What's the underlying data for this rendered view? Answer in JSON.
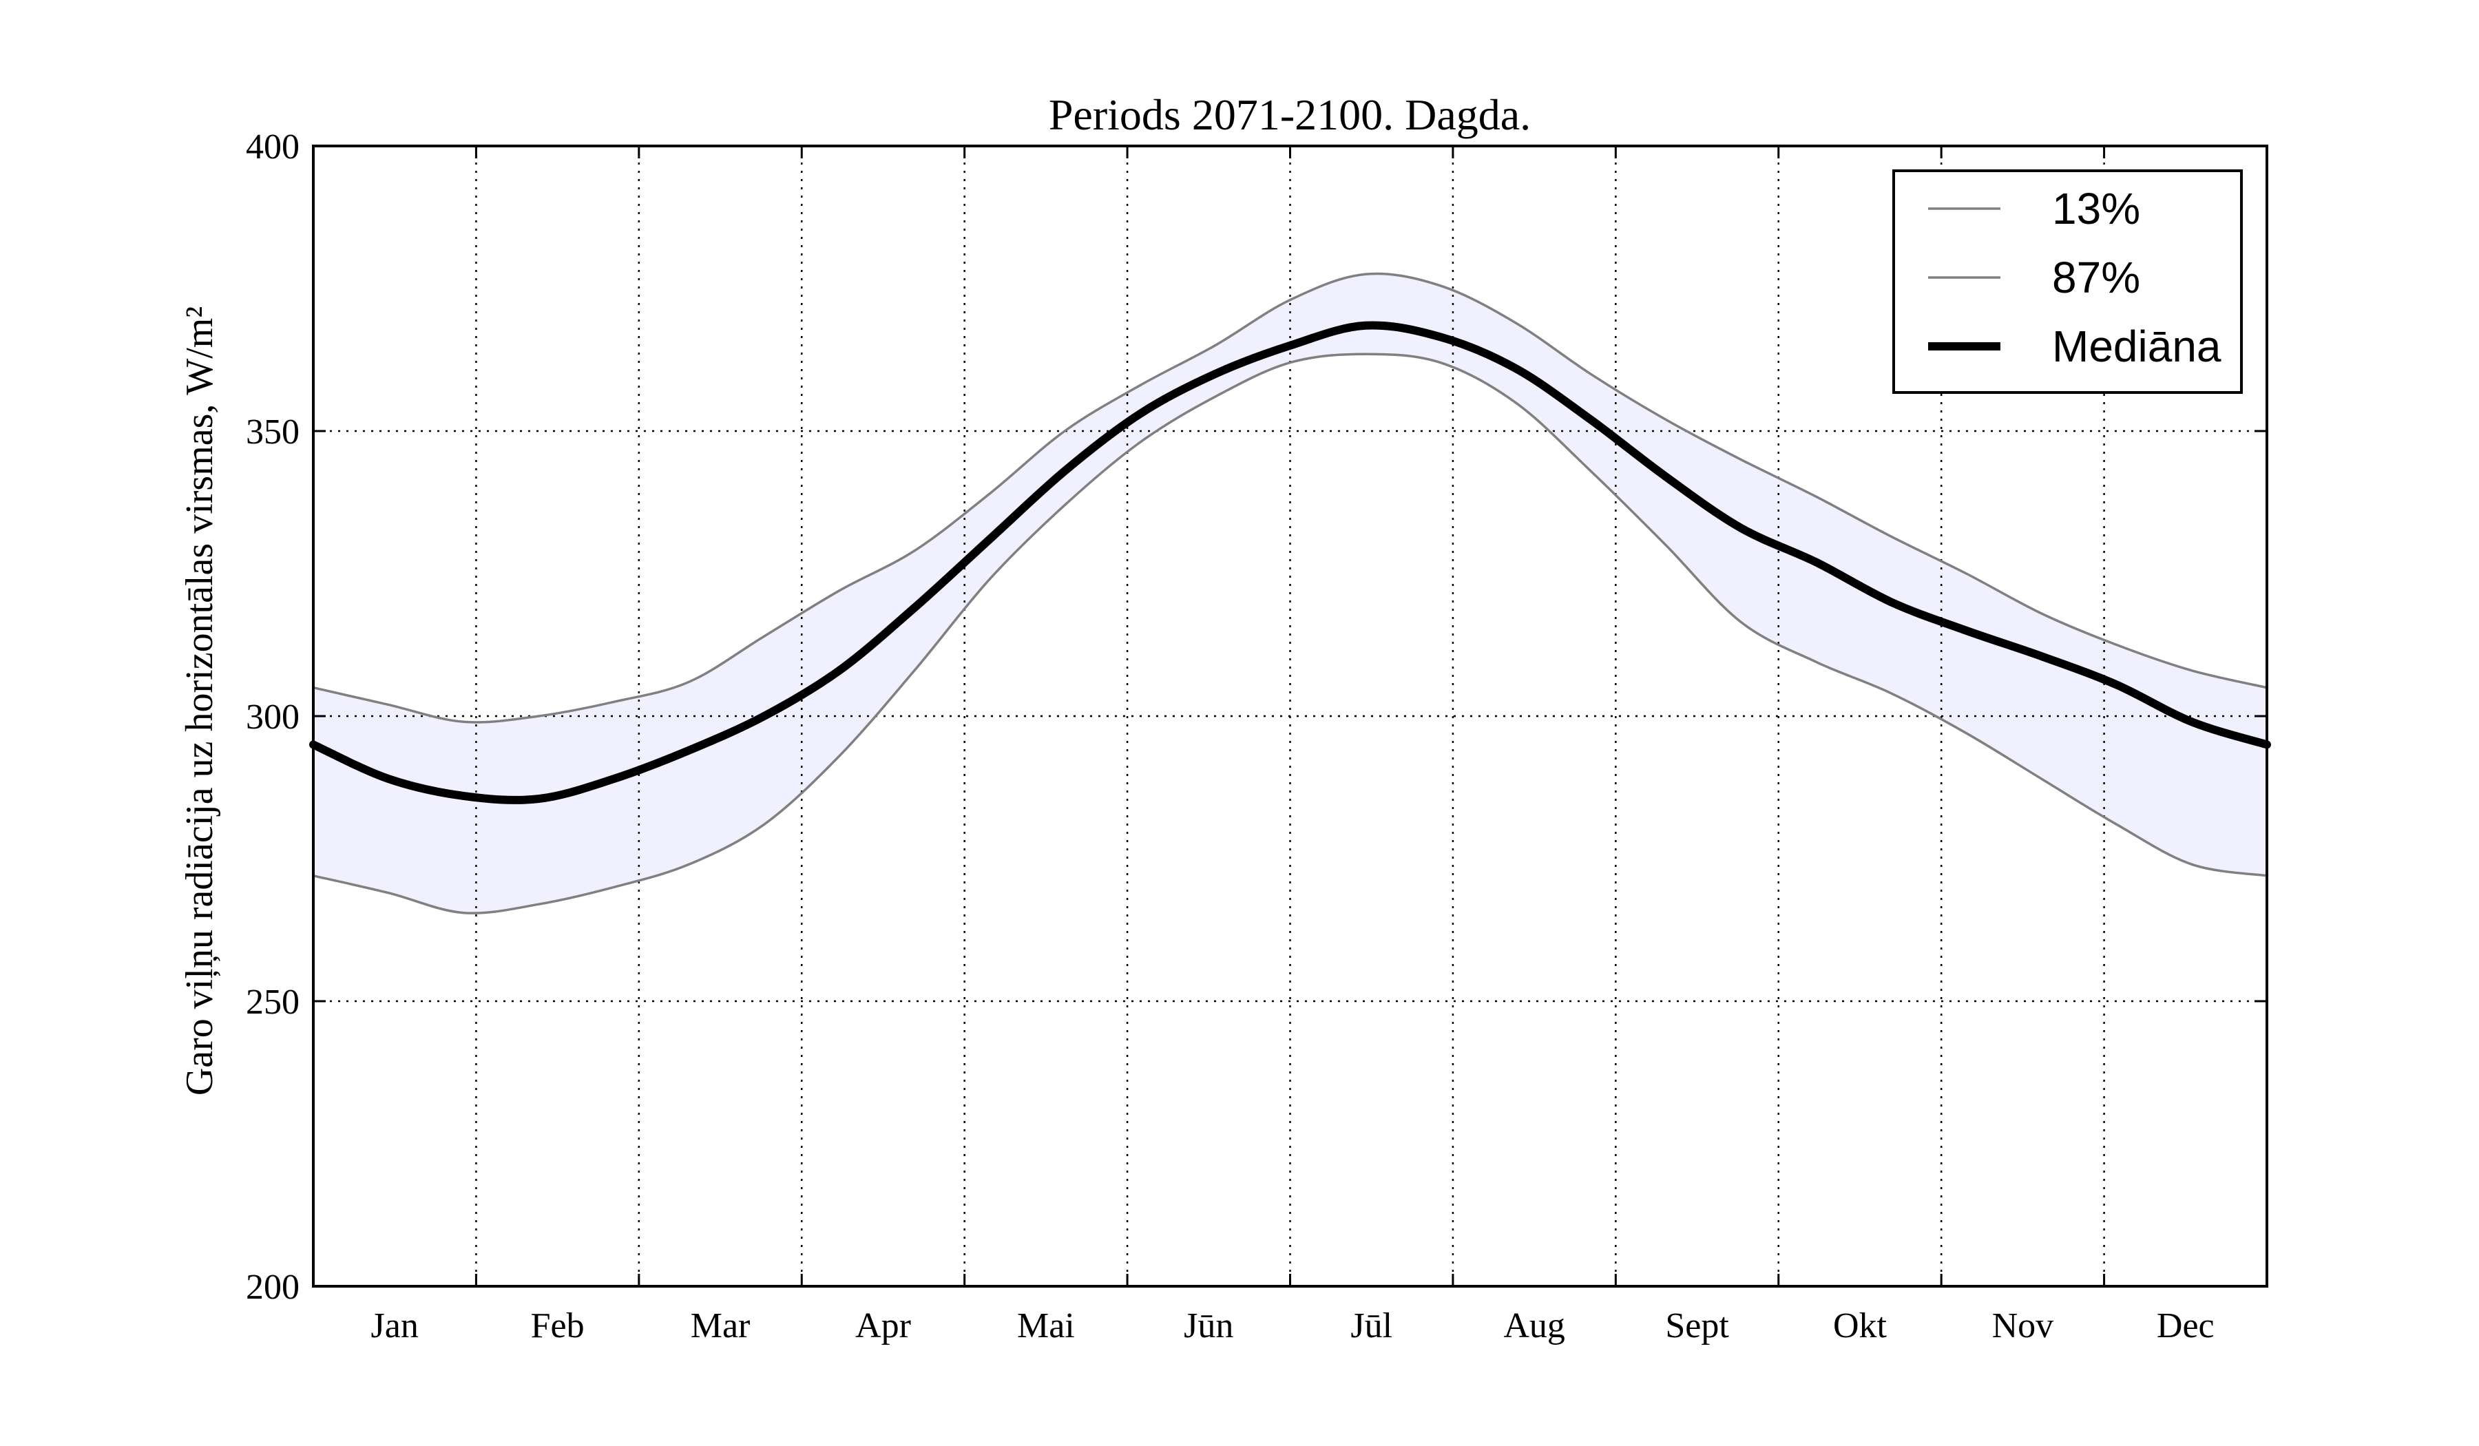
{
  "chart_data": {
    "type": "line",
    "title": "Periods 2071-2100. Dagda.",
    "ylabel": "Garo viļņu radiācija uz horizontālas virsmas, W/m²",
    "xlabel": "",
    "ylim": [
      200,
      400
    ],
    "yticks": [
      200,
      250,
      300,
      350,
      400
    ],
    "months": [
      "Jan",
      "Feb",
      "Mar",
      "Apr",
      "Mai",
      "Jūn",
      "Jūl",
      "Aug",
      "Sept",
      "Okt",
      "Nov",
      "Dec"
    ],
    "grid": true,
    "legend_position": "top-right",
    "band_color": "#f0f0ff",
    "series": [
      {
        "name": "13%",
        "color": "#808080",
        "values": [
          272,
          269,
          265.5,
          267,
          270,
          274,
          281,
          293,
          308,
          324,
          337,
          348,
          356,
          362,
          363.5,
          362,
          355,
          343,
          330,
          316.5,
          309.5,
          304,
          297,
          289,
          281,
          274,
          272
        ]
      },
      {
        "name": "87%",
        "color": "#808080",
        "values": [
          305,
          302,
          299,
          300,
          302.5,
          306,
          314,
          322,
          329,
          339,
          350,
          358,
          365,
          373,
          377.5,
          375.5,
          369,
          360,
          352,
          345,
          338.5,
          331.5,
          325,
          318,
          312.5,
          308,
          305
        ]
      },
      {
        "name": "Mediāna",
        "color": "#000000",
        "values": [
          295,
          289,
          286,
          285.5,
          289,
          294,
          300,
          308,
          319,
          331,
          343,
          353,
          360,
          365,
          368.5,
          366.5,
          361,
          352,
          342,
          333,
          327,
          320,
          315,
          310.5,
          305.5,
          299,
          295
        ]
      }
    ]
  }
}
